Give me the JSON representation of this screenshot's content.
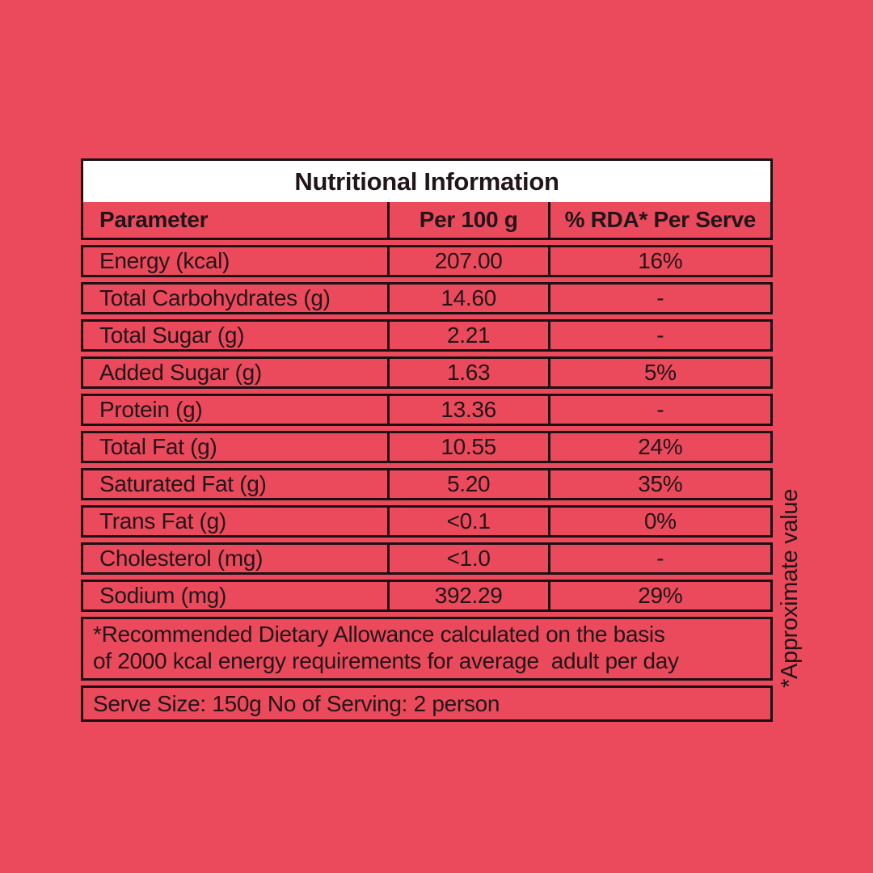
{
  "colors": {
    "background": "#EA4A5B",
    "border": "#1C1014",
    "text": "#221519",
    "title_background": "#FFFFFF"
  },
  "table": {
    "title": "Nutritional Information",
    "columns": [
      "Parameter",
      "Per 100 g",
      "% RDA* Per Serve"
    ],
    "rows": [
      {
        "label": "Energy (kcal)",
        "per_100g": "207.00",
        "rda": "16%"
      },
      {
        "label": "Total Carbohydrates (g)",
        "per_100g": "14.60",
        "rda": "-"
      },
      {
        "label": "Total Sugar (g)",
        "per_100g": "2.21",
        "rda": "-"
      },
      {
        "label": "Added Sugar (g)",
        "per_100g": "1.63",
        "rda": "5%"
      },
      {
        "label": "Protein (g)",
        "per_100g": "13.36",
        "rda": "-"
      },
      {
        "label": "Total Fat (g)",
        "per_100g": "10.55",
        "rda": "24%"
      },
      {
        "label": "Saturated Fat (g)",
        "per_100g": "5.20",
        "rda": "35%"
      },
      {
        "label": "Trans Fat (g)",
        "per_100g": "<0.1",
        "rda": "0%"
      },
      {
        "label": "Cholesterol (mg)",
        "per_100g": "<1.0",
        "rda": "-"
      },
      {
        "label": "Sodium (mg)",
        "per_100g": "392.29",
        "rda": "29%"
      }
    ],
    "footnote_line1": "*Recommended Dietary Allowance calculated on the basis",
    "footnote_line2": "of 2000 kcal energy requirements for average  adult per day",
    "serve_info": "Serve Size: 150g No of Serving: 2 person"
  },
  "side_note": "*Approximate value"
}
